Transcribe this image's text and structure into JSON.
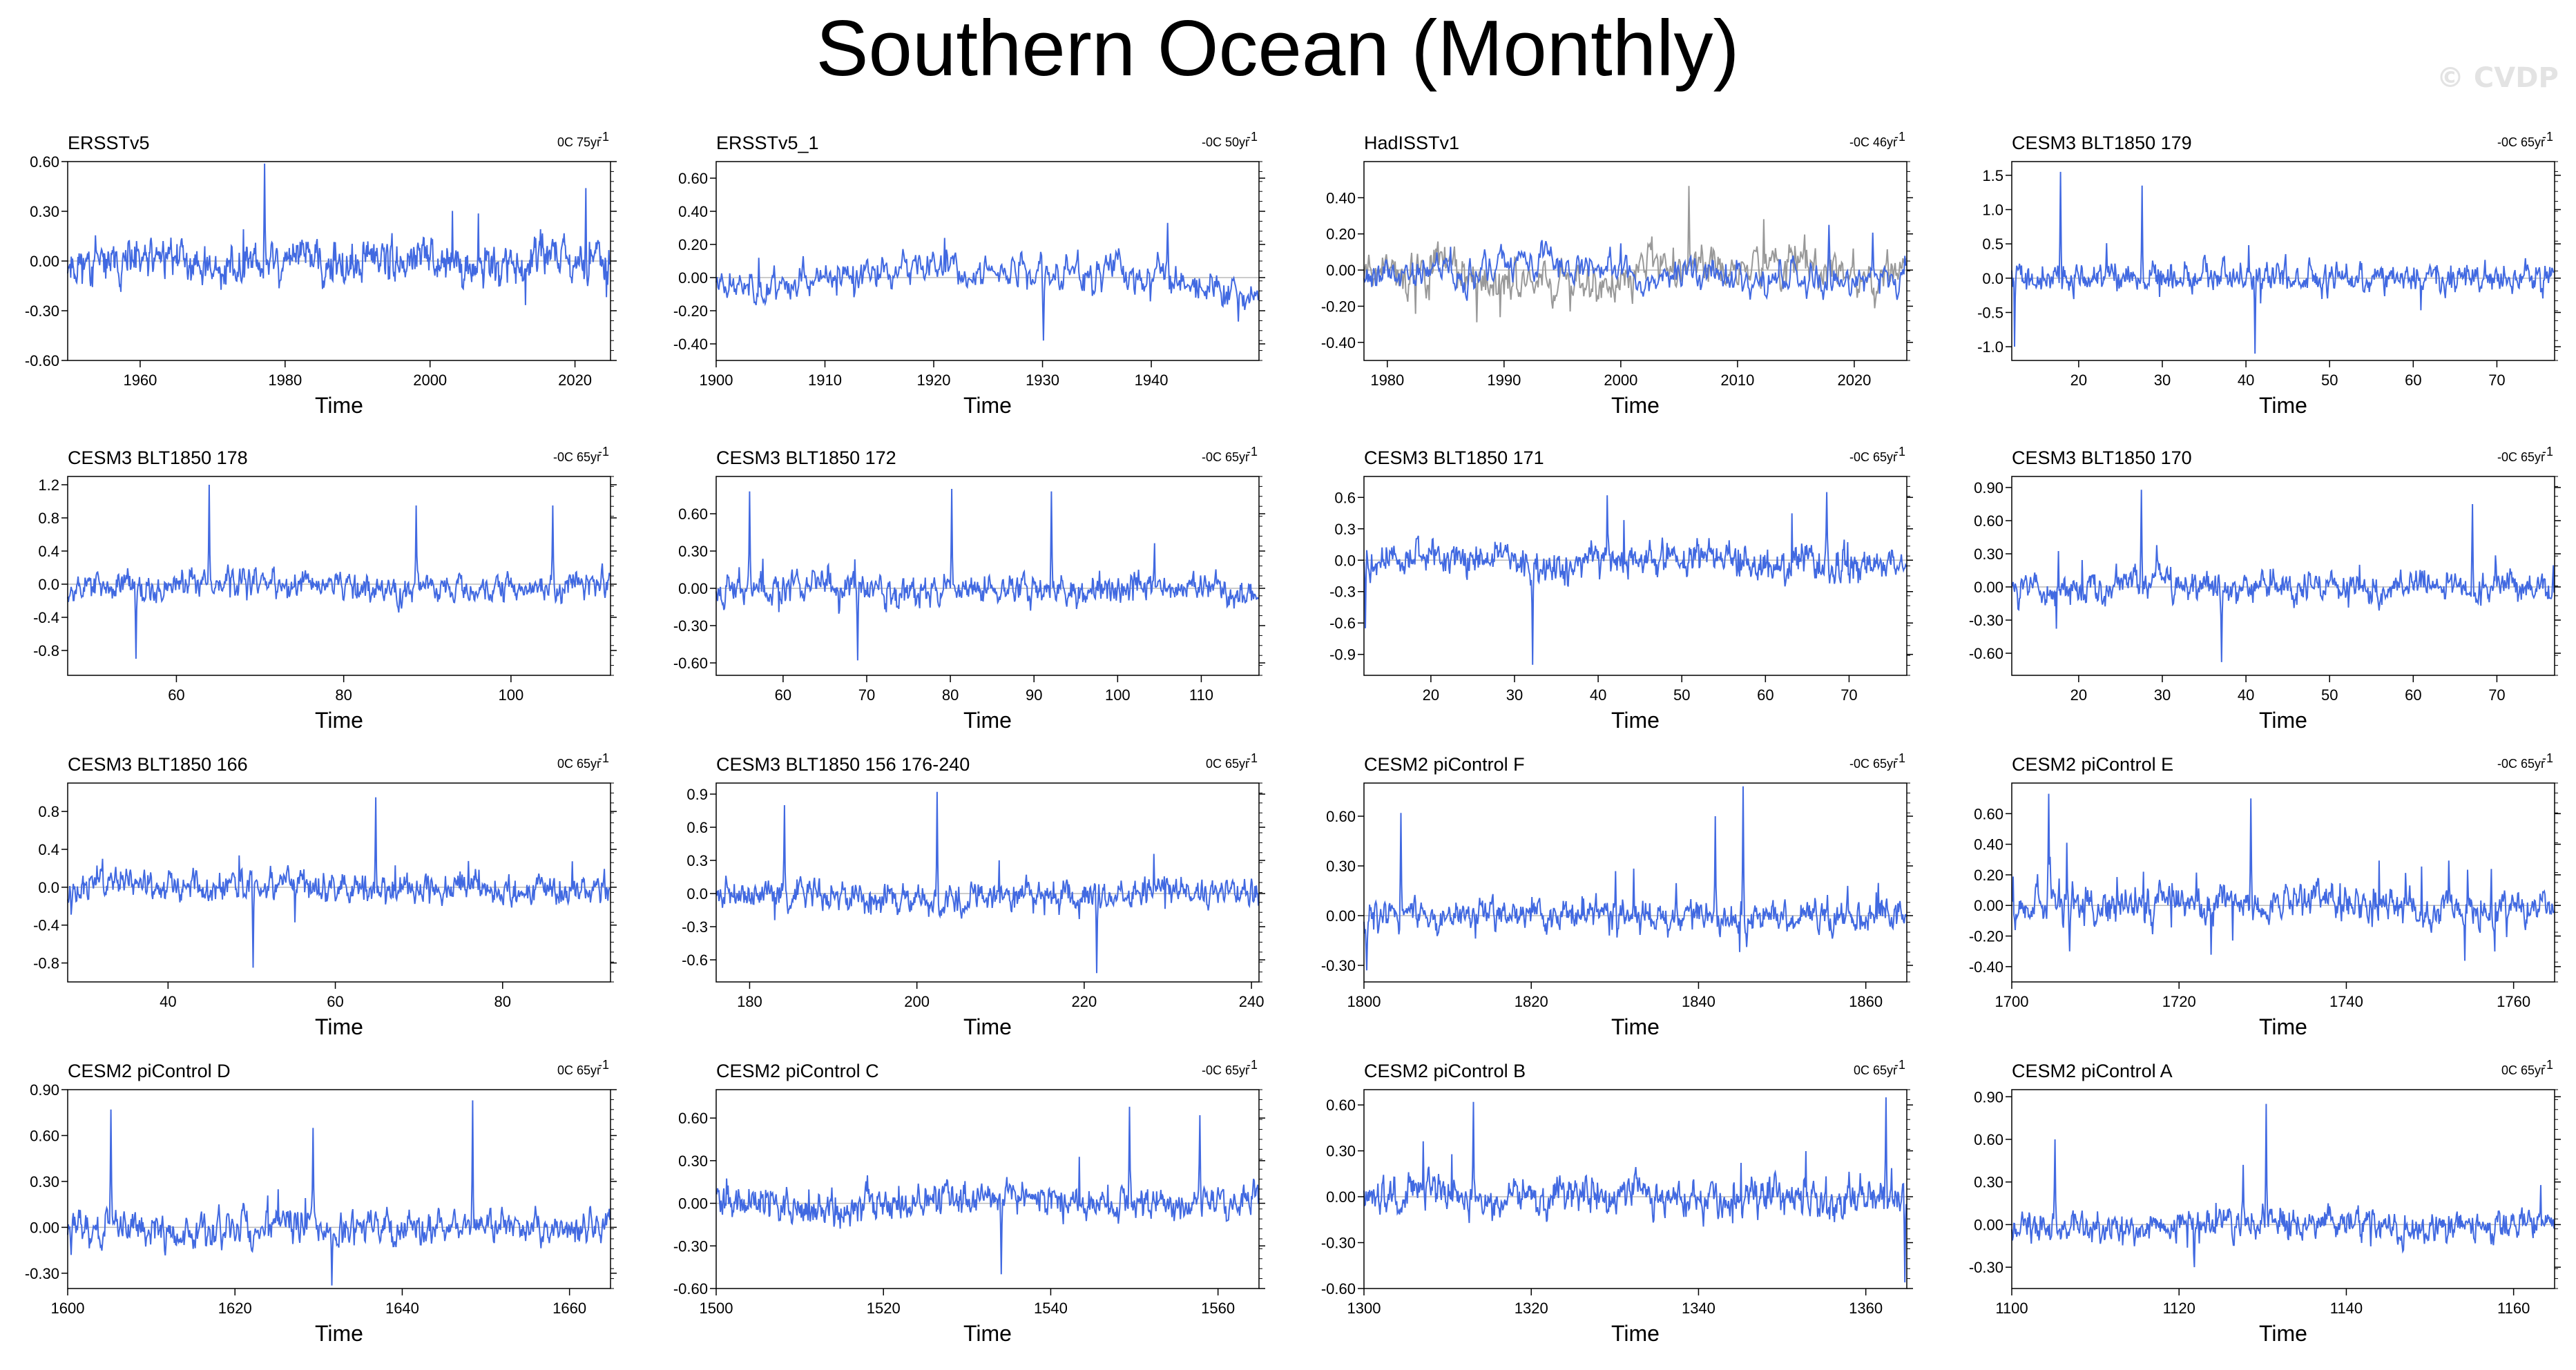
{
  "title": "Southern Ocean (Monthly)",
  "watermark": "© CVDP",
  "colors": {
    "series": "#4169E1",
    "secondary": "#999999",
    "zero_line": "#bbbbbb",
    "axis": "#000000"
  },
  "chart_data": [
    {
      "type": "line",
      "title": "ERSSTv5",
      "trend": "0C 75yr",
      "xlabel": "Time",
      "xlim": [
        1950,
        2024.9
      ],
      "xticks": [
        1960,
        1980,
        2000,
        2020
      ],
      "ylim": [
        -0.6,
        0.6
      ],
      "yticks": [
        "0.60",
        "0.30",
        "0.00",
        "-0.30",
        "-0.60"
      ],
      "amp": 0.09,
      "lowfreq": 0.06,
      "spikes": [
        [
          1977.2,
          0.6
        ],
        [
          2021.5,
          0.44
        ]
      ],
      "seed": 11
    },
    {
      "type": "line",
      "title": "ERSSTv5_1",
      "trend": "-0C 50yr",
      "xlabel": "Time",
      "xlim": [
        1900,
        1949.9
      ],
      "xticks": [
        1900,
        1910,
        1920,
        1930,
        1940
      ],
      "ylim": [
        -0.5,
        0.7
      ],
      "yticks": [
        "0.60",
        "0.40",
        "0.20",
        "0.00",
        "-0.20",
        "-0.40"
      ],
      "amp": 0.08,
      "lowfreq": 0.07,
      "spikes": [
        [
          1930.1,
          -0.38
        ],
        [
          1941.5,
          0.33
        ]
      ],
      "seed": 23
    },
    {
      "type": "line",
      "title": "HadISSTv1",
      "trend": "-0C 46yr",
      "xlabel": "Time",
      "xlim": [
        1978,
        2024.5
      ],
      "xticks": [
        1980,
        1990,
        2000,
        2010,
        2020
      ],
      "ylim": [
        -0.5,
        0.6
      ],
      "yticks": [
        "0.40",
        "0.20",
        "0.00",
        "-0.20",
        "-0.40"
      ],
      "amp": 0.07,
      "lowfreq": 0.05,
      "spikes": [
        [
          2017.8,
          0.25
        ]
      ],
      "seed": 37,
      "secondary": true
    },
    {
      "type": "line",
      "title": "CESM3 BLT1850 179",
      "trend": "-0C 65yr",
      "xlabel": "Time",
      "xlim": [
        12,
        76.9
      ],
      "xticks": [
        20,
        30,
        40,
        50,
        60,
        70
      ],
      "ylim": [
        -1.2,
        1.7
      ],
      "yticks": [
        "1.5",
        "1.0",
        "0.5",
        "0.0",
        "-0.5",
        "-1.0"
      ],
      "amp": 0.16,
      "lowfreq": 0.05,
      "spikes": [
        [
          17.8,
          1.55
        ],
        [
          27.6,
          1.35
        ],
        [
          12.3,
          -1.0
        ],
        [
          41.1,
          -1.1
        ]
      ],
      "seed": 41
    },
    {
      "type": "line",
      "title": "CESM3 BLT1850 178",
      "trend": "-0C 65yr",
      "xlabel": "Time",
      "xlim": [
        47,
        111.9
      ],
      "xticks": [
        60,
        80,
        100
      ],
      "ylim": [
        -1.1,
        1.3
      ],
      "yticks": [
        "1.2",
        "0.8",
        "0.4",
        "0.0",
        "-0.4",
        "-0.8"
      ],
      "amp": 0.13,
      "lowfreq": 0.05,
      "spikes": [
        [
          63.9,
          1.2
        ],
        [
          88.7,
          0.95
        ],
        [
          105,
          0.95
        ],
        [
          55.2,
          -0.9
        ]
      ],
      "seed": 53
    },
    {
      "type": "line",
      "title": "CESM3 BLT1850 172",
      "trend": "-0C 65yr",
      "xlabel": "Time",
      "xlim": [
        52,
        116.9
      ],
      "xticks": [
        60,
        70,
        80,
        90,
        100,
        110
      ],
      "ylim": [
        -0.7,
        0.9
      ],
      "yticks": [
        "0.60",
        "0.30",
        "0.00",
        "-0.30",
        "-0.60"
      ],
      "amp": 0.09,
      "lowfreq": 0.04,
      "spikes": [
        [
          56,
          0.78
        ],
        [
          80.2,
          0.8
        ],
        [
          92.1,
          0.78
        ],
        [
          68.9,
          -0.58
        ]
      ],
      "seed": 67
    },
    {
      "type": "line",
      "title": "CESM3 BLT1850 171",
      "trend": "-0C 65yr",
      "xlabel": "Time",
      "xlim": [
        12,
        76.9
      ],
      "xticks": [
        20,
        30,
        40,
        50,
        60,
        70
      ],
      "ylim": [
        -1.1,
        0.8
      ],
      "yticks": [
        "0.6",
        "0.3",
        "0.0",
        "-0.3",
        "-0.6",
        "-0.9"
      ],
      "amp": 0.12,
      "lowfreq": 0.04,
      "spikes": [
        [
          32.2,
          -1.0
        ],
        [
          41.1,
          0.62
        ],
        [
          67.3,
          0.65
        ],
        [
          12.2,
          -0.65
        ]
      ],
      "seed": 71
    },
    {
      "type": "line",
      "title": "CESM3 BLT1850 170",
      "trend": "-0C 65yr",
      "xlabel": "Time",
      "xlim": [
        12,
        76.9
      ],
      "xticks": [
        20,
        30,
        40,
        50,
        60,
        70
      ],
      "ylim": [
        -0.8,
        1.0
      ],
      "yticks": [
        "0.90",
        "0.60",
        "0.30",
        "0.00",
        "-0.30",
        "-0.60"
      ],
      "amp": 0.1,
      "lowfreq": 0.04,
      "spikes": [
        [
          27.5,
          0.88
        ],
        [
          67.1,
          0.75
        ],
        [
          37.1,
          -0.68
        ]
      ],
      "seed": 83
    },
    {
      "type": "line",
      "title": "CESM3 BLT1850 166",
      "trend": "0C 65yr",
      "xlabel": "Time",
      "xlim": [
        28,
        92.9
      ],
      "xticks": [
        40,
        60,
        80
      ],
      "ylim": [
        -1.0,
        1.1
      ],
      "yticks": [
        "0.8",
        "0.4",
        "0.0",
        "-0.4",
        "-0.8"
      ],
      "amp": 0.12,
      "lowfreq": 0.04,
      "spikes": [
        [
          64.8,
          0.95
        ],
        [
          50.2,
          -0.85
        ]
      ],
      "seed": 97
    },
    {
      "type": "line",
      "title": "CESM3 BLT1850 156 176-240",
      "trend": "0C 65yr",
      "xlabel": "Time",
      "xlim": [
        176,
        240.9
      ],
      "xticks": [
        180,
        200,
        220,
        240
      ],
      "ylim": [
        -0.8,
        1.0
      ],
      "yticks": [
        "0.9",
        "0.6",
        "0.3",
        "0.0",
        "-0.3",
        "-0.6"
      ],
      "amp": 0.1,
      "lowfreq": 0.04,
      "spikes": [
        [
          184.2,
          0.8
        ],
        [
          202.4,
          0.92
        ],
        [
          221.5,
          -0.72
        ]
      ],
      "seed": 101
    },
    {
      "type": "line",
      "title": "CESM2 piControl F",
      "trend": "-0C 65yr",
      "xlabel": "Time",
      "xlim": [
        1800,
        1864.9
      ],
      "xticks": [
        1800,
        1820,
        1840,
        1860
      ],
      "ylim": [
        -0.4,
        0.8
      ],
      "yticks": [
        "0.60",
        "0.30",
        "0.00",
        "-0.30"
      ],
      "amp": 0.07,
      "lowfreq": 0.03,
      "spikes": [
        [
          1804.4,
          0.62
        ],
        [
          1845.3,
          0.78
        ],
        [
          1842,
          0.6
        ],
        [
          1800.3,
          -0.33
        ]
      ],
      "seed": 113
    },
    {
      "type": "line",
      "title": "CESM2 piControl E",
      "trend": "-0C 65yr",
      "xlabel": "Time",
      "xlim": [
        1700,
        1764.9
      ],
      "xticks": [
        1700,
        1720,
        1740,
        1760
      ],
      "ylim": [
        -0.5,
        0.8
      ],
      "yticks": [
        "0.60",
        "0.40",
        "0.20",
        "0.00",
        "-0.20",
        "-0.40"
      ],
      "amp": 0.09,
      "lowfreq": 0.03,
      "spikes": [
        [
          1704.4,
          0.73
        ],
        [
          1728.6,
          0.7
        ],
        [
          1706.9,
          -0.3
        ]
      ],
      "seed": 127
    },
    {
      "type": "line",
      "title": "CESM2 piControl D",
      "trend": "0C 65yr",
      "xlabel": "Time",
      "xlim": [
        1600,
        1664.9
      ],
      "xticks": [
        1600,
        1620,
        1640,
        1660
      ],
      "ylim": [
        -0.4,
        0.9
      ],
      "yticks": [
        "0.90",
        "0.60",
        "0.30",
        "0.00",
        "-0.30"
      ],
      "amp": 0.08,
      "lowfreq": 0.03,
      "spikes": [
        [
          1605.2,
          0.77
        ],
        [
          1648.4,
          0.83
        ],
        [
          1629.3,
          0.65
        ],
        [
          1631.6,
          -0.38
        ]
      ],
      "seed": 131
    },
    {
      "type": "line",
      "title": "CESM2 piControl C",
      "trend": "-0C 65yr",
      "xlabel": "Time",
      "xlim": [
        1500,
        1564.9
      ],
      "xticks": [
        1500,
        1520,
        1540,
        1560
      ],
      "ylim": [
        -0.6,
        0.8
      ],
      "yticks": [
        "0.60",
        "0.30",
        "0.00",
        "-0.30",
        "-0.60"
      ],
      "amp": 0.09,
      "lowfreq": 0.04,
      "spikes": [
        [
          1549.4,
          0.68
        ],
        [
          1557.8,
          0.62
        ],
        [
          1534.1,
          -0.5
        ]
      ],
      "seed": 139
    },
    {
      "type": "line",
      "title": "CESM2 piControl B",
      "trend": "0C 65yr",
      "xlabel": "Time",
      "xlim": [
        1300,
        1364.9
      ],
      "xticks": [
        1300,
        1320,
        1340,
        1360
      ],
      "ylim": [
        -0.6,
        0.7
      ],
      "yticks": [
        "0.60",
        "0.30",
        "0.00",
        "-0.30",
        "-0.60"
      ],
      "amp": 0.09,
      "lowfreq": 0.04,
      "spikes": [
        [
          1313.1,
          0.62
        ],
        [
          1362.4,
          0.65
        ],
        [
          1364.7,
          -0.56
        ]
      ],
      "seed": 149
    },
    {
      "type": "line",
      "title": "CESM2 piControl A",
      "trend": "0C 65yr",
      "xlabel": "Time",
      "xlim": [
        1100,
        1164.9
      ],
      "xticks": [
        1100,
        1120,
        1140,
        1160
      ],
      "ylim": [
        -0.45,
        0.95
      ],
      "yticks": [
        "0.90",
        "0.60",
        "0.30",
        "0.00",
        "-0.30"
      ],
      "amp": 0.08,
      "lowfreq": 0.03,
      "spikes": [
        [
          1130.4,
          0.85
        ],
        [
          1105.2,
          0.6
        ],
        [
          1121.8,
          -0.3
        ]
      ],
      "seed": 157
    }
  ]
}
